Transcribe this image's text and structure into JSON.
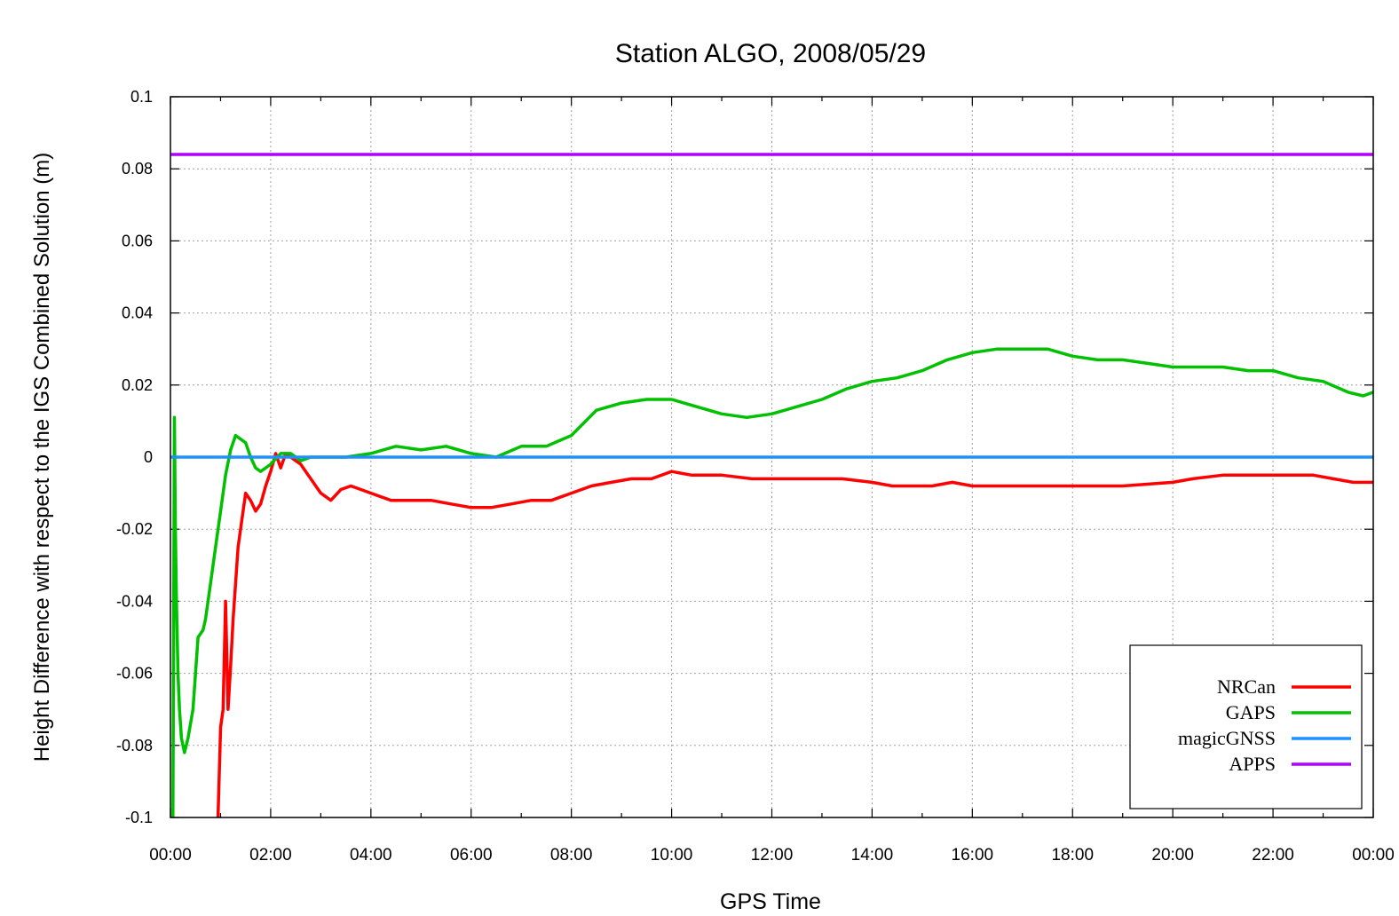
{
  "chart_data": {
    "type": "line",
    "title": "Station ALGO, 2008/05/29",
    "xlabel": "GPS Time",
    "ylabel": "Height Difference with respect to the IGS Combined Solution (m)",
    "xlim": [
      0,
      24
    ],
    "ylim": [
      -0.1,
      0.1
    ],
    "x_ticks": [
      {
        "value": 0,
        "label": "00:00"
      },
      {
        "value": 2,
        "label": "02:00"
      },
      {
        "value": 4,
        "label": "04:00"
      },
      {
        "value": 6,
        "label": "06:00"
      },
      {
        "value": 8,
        "label": "08:00"
      },
      {
        "value": 10,
        "label": "10:00"
      },
      {
        "value": 12,
        "label": "12:00"
      },
      {
        "value": 14,
        "label": "14:00"
      },
      {
        "value": 16,
        "label": "16:00"
      },
      {
        "value": 18,
        "label": "18:00"
      },
      {
        "value": 20,
        "label": "20:00"
      },
      {
        "value": 22,
        "label": "22:00"
      },
      {
        "value": 24,
        "label": "00:00"
      }
    ],
    "y_ticks": [
      {
        "value": 0.1,
        "label": "0.1"
      },
      {
        "value": 0.08,
        "label": "0.08"
      },
      {
        "value": 0.06,
        "label": "0.06"
      },
      {
        "value": 0.04,
        "label": "0.04"
      },
      {
        "value": 0.02,
        "label": "0.02"
      },
      {
        "value": 0,
        "label": "0"
      },
      {
        "value": -0.02,
        "label": "-0.02"
      },
      {
        "value": -0.04,
        "label": "-0.04"
      },
      {
        "value": -0.06,
        "label": "-0.06"
      },
      {
        "value": -0.08,
        "label": "-0.08"
      },
      {
        "value": -0.1,
        "label": "-0.1"
      }
    ],
    "grid": true,
    "legend_position": "bottom-right",
    "series": [
      {
        "name": "NRCan",
        "color": "#ff0000",
        "x": [
          0.95,
          1.0,
          1.05,
          1.1,
          1.15,
          1.2,
          1.25,
          1.3,
          1.35,
          1.4,
          1.5,
          1.6,
          1.7,
          1.8,
          1.9,
          2.0,
          2.1,
          2.2,
          2.3,
          2.4,
          2.5,
          2.6,
          2.7,
          2.8,
          2.9,
          3.0,
          3.2,
          3.4,
          3.6,
          3.8,
          4.0,
          4.4,
          4.8,
          5.2,
          5.6,
          6.0,
          6.4,
          6.8,
          7.2,
          7.6,
          8.0,
          8.4,
          8.8,
          9.2,
          9.6,
          10.0,
          10.4,
          11.0,
          11.6,
          12.2,
          12.8,
          13.4,
          14.0,
          14.4,
          14.8,
          15.2,
          15.6,
          16.0,
          17.0,
          18.0,
          19.0,
          20.0,
          20.4,
          21.0,
          21.6,
          22.0,
          22.4,
          22.8,
          23.2,
          23.6,
          24.0
        ],
        "y": [
          -0.1,
          -0.075,
          -0.07,
          -0.04,
          -0.07,
          -0.058,
          -0.045,
          -0.035,
          -0.025,
          -0.02,
          -0.01,
          -0.012,
          -0.015,
          -0.013,
          -0.008,
          -0.004,
          0.001,
          -0.003,
          0.001,
          0.0,
          -0.001,
          -0.002,
          -0.004,
          -0.006,
          -0.008,
          -0.01,
          -0.012,
          -0.009,
          -0.008,
          -0.009,
          -0.01,
          -0.012,
          -0.012,
          -0.012,
          -0.013,
          -0.014,
          -0.014,
          -0.013,
          -0.012,
          -0.012,
          -0.01,
          -0.008,
          -0.007,
          -0.006,
          -0.006,
          -0.004,
          -0.005,
          -0.005,
          -0.006,
          -0.006,
          -0.006,
          -0.006,
          -0.007,
          -0.008,
          -0.008,
          -0.008,
          -0.007,
          -0.008,
          -0.008,
          -0.008,
          -0.008,
          -0.007,
          -0.006,
          -0.005,
          -0.005,
          -0.005,
          -0.005,
          -0.005,
          -0.006,
          -0.007,
          -0.007
        ]
      },
      {
        "name": "GAPS",
        "color": "#00c000",
        "x": [
          0.05,
          0.08,
          0.1,
          0.12,
          0.15,
          0.18,
          0.22,
          0.28,
          0.35,
          0.45,
          0.55,
          0.65,
          0.7,
          0.8,
          0.9,
          1.0,
          1.1,
          1.2,
          1.3,
          1.4,
          1.5,
          1.6,
          1.7,
          1.8,
          1.9,
          2.0,
          2.2,
          2.4,
          2.6,
          2.8,
          3.0,
          3.5,
          4.0,
          4.5,
          5.0,
          5.5,
          6.0,
          6.5,
          7.0,
          7.5,
          8.0,
          8.5,
          9.0,
          9.5,
          10.0,
          10.5,
          11.0,
          11.5,
          12.0,
          12.5,
          13.0,
          13.5,
          14.0,
          14.5,
          15.0,
          15.5,
          16.0,
          16.5,
          17.0,
          17.5,
          18.0,
          18.5,
          19.0,
          19.5,
          20.0,
          20.5,
          21.0,
          21.5,
          22.0,
          22.5,
          23.0,
          23.5,
          23.8,
          24.0
        ],
        "y": [
          -0.1,
          0.011,
          -0.02,
          -0.04,
          -0.06,
          -0.07,
          -0.078,
          -0.082,
          -0.078,
          -0.07,
          -0.05,
          -0.048,
          -0.045,
          -0.035,
          -0.025,
          -0.015,
          -0.005,
          0.002,
          0.006,
          0.005,
          0.004,
          0.0,
          -0.003,
          -0.004,
          -0.003,
          -0.002,
          0.001,
          0.001,
          -0.001,
          0.0,
          0.0,
          0.0,
          0.001,
          0.003,
          0.002,
          0.003,
          0.001,
          0.0,
          0.003,
          0.003,
          0.006,
          0.013,
          0.015,
          0.016,
          0.016,
          0.014,
          0.012,
          0.011,
          0.012,
          0.014,
          0.016,
          0.019,
          0.021,
          0.022,
          0.024,
          0.027,
          0.029,
          0.03,
          0.03,
          0.03,
          0.028,
          0.027,
          0.027,
          0.026,
          0.025,
          0.025,
          0.025,
          0.024,
          0.024,
          0.022,
          0.021,
          0.018,
          0.017,
          0.018
        ]
      },
      {
        "name": "magicGNSS",
        "color": "#1e90ff",
        "x": [
          0,
          24
        ],
        "y": [
          0,
          0
        ]
      },
      {
        "name": "APPS",
        "color": "#b000ff",
        "x": [
          0,
          24
        ],
        "y": [
          0.084,
          0.084
        ]
      }
    ]
  }
}
